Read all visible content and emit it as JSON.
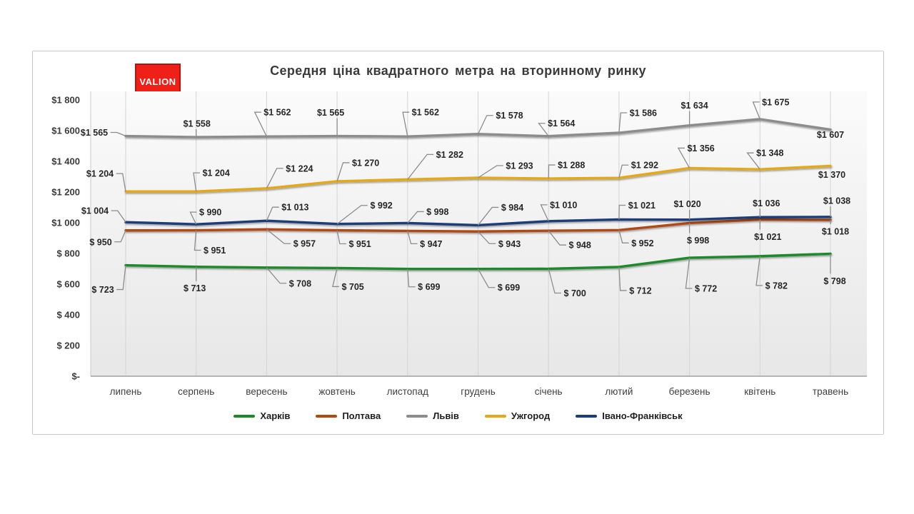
{
  "logo": {
    "text": "VALION"
  },
  "chart_data": {
    "type": "line",
    "title": "Середня ціна квадратного метра на вторинному ринку",
    "categories": [
      "липень",
      "серпень",
      "вересень",
      "жовтень",
      "листопад",
      "грудень",
      "січень",
      "лютий",
      "березень",
      "квітень",
      "травень"
    ],
    "series": [
      {
        "name": "Харків",
        "color": "#1d8a2a",
        "values": [
          723,
          713,
          708,
          705,
          699,
          699,
          700,
          712,
          772,
          782,
          798
        ]
      },
      {
        "name": "Полтава",
        "color": "#b04a12",
        "values": [
          950,
          951,
          957,
          951,
          947,
          943,
          948,
          952,
          998,
          1021,
          1018
        ]
      },
      {
        "name": "Львів",
        "color": "#8c8c8c",
        "values": [
          1565,
          1558,
          1562,
          1565,
          1562,
          1578,
          1564,
          1586,
          1634,
          1675,
          1607
        ]
      },
      {
        "name": "Ужгород",
        "color": "#e5a819",
        "values": [
          1204,
          1204,
          1224,
          1270,
          1282,
          1293,
          1288,
          1292,
          1356,
          1348,
          1370
        ]
      },
      {
        "name": "Івано-Франківськ",
        "color": "#1d3d78",
        "values": [
          1004,
          990,
          1013,
          992,
          998,
          984,
          1010,
          1021,
          1020,
          1036,
          1038
        ]
      }
    ],
    "y_axis": {
      "min": 0,
      "max": 1800,
      "ticks": [
        {
          "label": "$1 800",
          "value": 1800
        },
        {
          "label": "$1 600",
          "value": 1600
        },
        {
          "label": "$1 400",
          "value": 1400
        },
        {
          "label": "$1 200",
          "value": 1200
        },
        {
          "label": "$1 000",
          "value": 1000
        },
        {
          "label": "$ 800",
          "value": 800
        },
        {
          "label": "$ 600",
          "value": 600
        },
        {
          "label": "$ 400",
          "value": 400
        },
        {
          "label": "$ 200",
          "value": 200
        },
        {
          "label": "$-",
          "value": 0
        }
      ]
    },
    "legend_position": "bottom",
    "grid": "vertical",
    "data_labels": true
  }
}
